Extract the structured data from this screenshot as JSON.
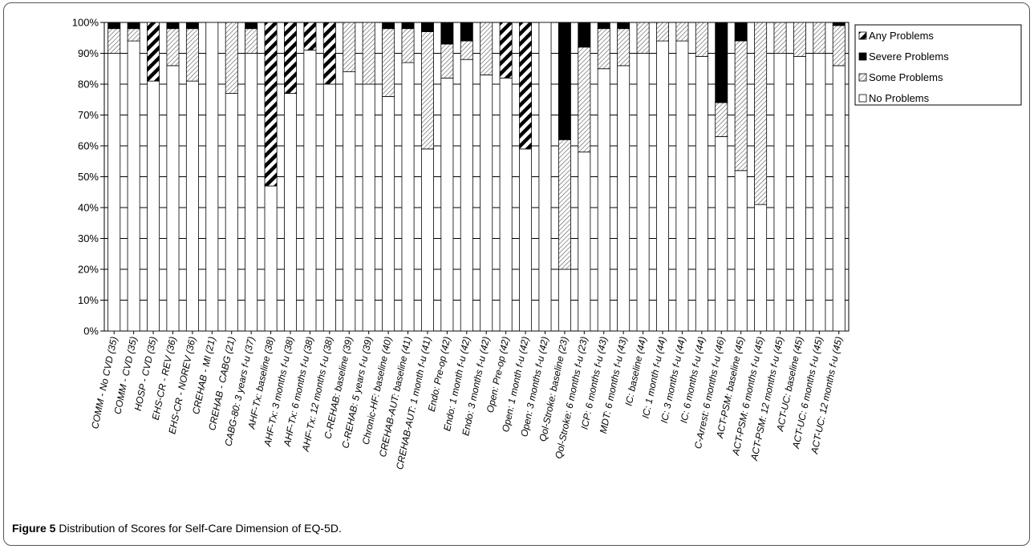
{
  "caption": {
    "label": "Figure 5",
    "text": "Distribution of Scores for Self-Care Dimension of EQ-5D",
    "end": "."
  },
  "chart_data": {
    "type": "bar",
    "stacked": true,
    "title": "",
    "xlabel": "",
    "ylabel": "",
    "ylim": [
      0,
      100
    ],
    "yticks": [
      "0%",
      "10%",
      "20%",
      "30%",
      "40%",
      "50%",
      "60%",
      "70%",
      "80%",
      "90%",
      "100%"
    ],
    "grid": true,
    "legend_position": "right",
    "legend": [
      "Any Problems",
      "Severe Problems",
      "Some Problems",
      "No Problems"
    ],
    "categories": [
      "COMM - No CVD (35)",
      "COMM - CVD (35)",
      "HOSP - CVD (35)",
      "EHS-CR - REV (36)",
      "EHS-CR - NOREV (36)",
      "CREHAB - MI (21)",
      "CREHAB - CABG (21)",
      "CABG-80: 3 years f-u (37)",
      "AHF-Tx: baseline (38)",
      "AHF-Tx: 3 months f-u (38)",
      "AHF-Tx: 6 months f-u (38)",
      "AHF-Tx: 12 months f-u (38)",
      "C-REHAB: baseline (39)",
      "C-REHAB: 5 years f-u (39)",
      "Chronic-HF: baseline (40)",
      "CREHAB-AUT: baseline (41)",
      "CREHAB-AUT: 1 month f-u (41)",
      "Endo: Pre-op (42)",
      "Endo: 1 month f-u (42)",
      "Endo: 3 months f-u (42)",
      "Open: Pre-op (42)",
      "Open: 1 month f-u (42)",
      "Open: 3 months f-u (42)",
      "Qol-Stroke: baseline (23)",
      "Qol-Stroke: 6 months f-u (23)",
      "ICP: 6 months f-u (43)",
      "MDT: 6 months f-u (43)",
      "IC: baseline (44)",
      "IC: 1 month f-u (44)",
      "IC: 3 months f-u (44)",
      "IC: 6 months f-u (44)",
      "C-Arrest: 6 months f-u (46)",
      "ACT-PSM: baseline (45)",
      "ACT-PSM: 6 months f-u (45)",
      "ACT-PSM: 12 months f-u (45)",
      "ACT-UC: baseline (45)",
      "ACT-UC: 6 months f-u (45)",
      "ACT-UC: 12 months f-u (45)"
    ],
    "series": [
      {
        "name": "No Problems",
        "pattern": "none",
        "values": [
          90,
          94,
          81,
          86,
          81,
          100,
          77,
          90,
          47,
          77,
          91,
          80,
          84,
          80,
          76,
          87,
          59,
          82,
          88,
          83,
          82,
          59,
          100,
          20,
          58,
          85,
          86,
          90,
          94,
          94,
          89,
          63,
          52,
          41,
          90,
          89,
          90,
          86
        ]
      },
      {
        "name": "Some Problems",
        "pattern": "diag-light",
        "values": [
          8,
          4,
          0,
          12,
          17,
          0,
          23,
          8,
          0,
          0,
          0,
          0,
          16,
          20,
          22,
          11,
          38,
          11,
          6,
          17,
          0,
          0,
          0,
          42,
          34,
          13,
          12,
          10,
          6,
          6,
          11,
          11,
          42,
          59,
          10,
          11,
          10,
          13
        ]
      },
      {
        "name": "Severe Problems",
        "pattern": "solid",
        "values": [
          2,
          2,
          0,
          2,
          2,
          0,
          0,
          2,
          0,
          0,
          0,
          0,
          0,
          0,
          2,
          2,
          3,
          7,
          6,
          0,
          0,
          0,
          0,
          38,
          8,
          2,
          2,
          0,
          0,
          0,
          0,
          26,
          6,
          0,
          0,
          0,
          0,
          1
        ]
      },
      {
        "name": "Any Problems",
        "pattern": "diag-heavy",
        "values": [
          0,
          0,
          19,
          0,
          0,
          0,
          0,
          0,
          53,
          23,
          9,
          20,
          0,
          0,
          0,
          0,
          0,
          0,
          0,
          0,
          18,
          41,
          0,
          0,
          0,
          0,
          0,
          0,
          0,
          0,
          0,
          0,
          0,
          0,
          0,
          0,
          0,
          0
        ]
      }
    ]
  }
}
